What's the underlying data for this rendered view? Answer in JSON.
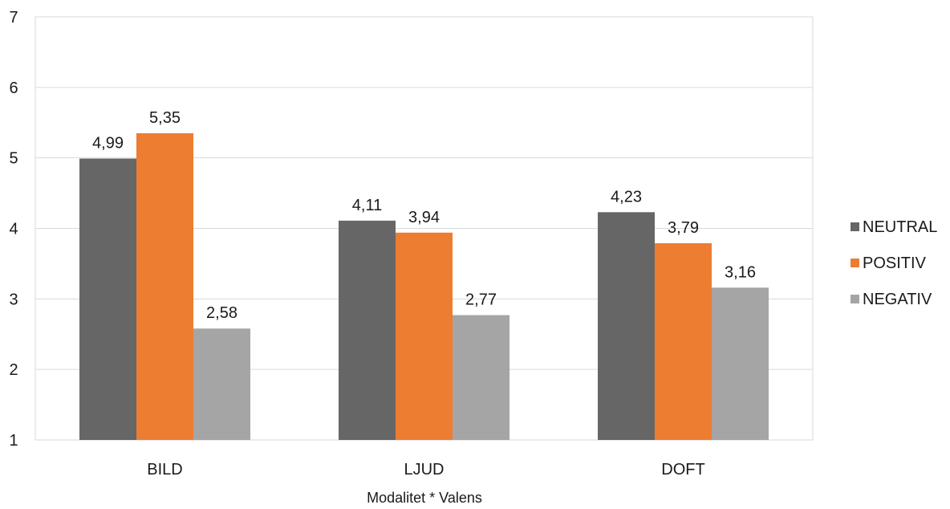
{
  "chart_data": {
    "type": "bar",
    "categories": [
      "BILD",
      "LJUD",
      "DOFT"
    ],
    "series": [
      {
        "name": "NEUTRAL",
        "values": [
          4.99,
          4.11,
          4.23
        ],
        "labels": [
          "4,99",
          "4,11",
          "4,23"
        ],
        "color": "#666666"
      },
      {
        "name": "POSITIV",
        "values": [
          5.35,
          3.94,
          3.79
        ],
        "labels": [
          "5,35",
          "3,94",
          "3,79"
        ],
        "color": "#ed7d31"
      },
      {
        "name": "NEGATIV",
        "values": [
          2.58,
          2.77,
          3.16
        ],
        "labels": [
          "2,58",
          "2,77",
          "3,16"
        ],
        "color": "#a5a5a5"
      }
    ],
    "title": "",
    "xlabel": "Modalitet * Valens",
    "ylabel": "",
    "ylim": [
      1,
      7
    ],
    "yticks": [
      "1",
      "2",
      "3",
      "4",
      "5",
      "6",
      "7"
    ],
    "grid": true,
    "legend": "right"
  }
}
